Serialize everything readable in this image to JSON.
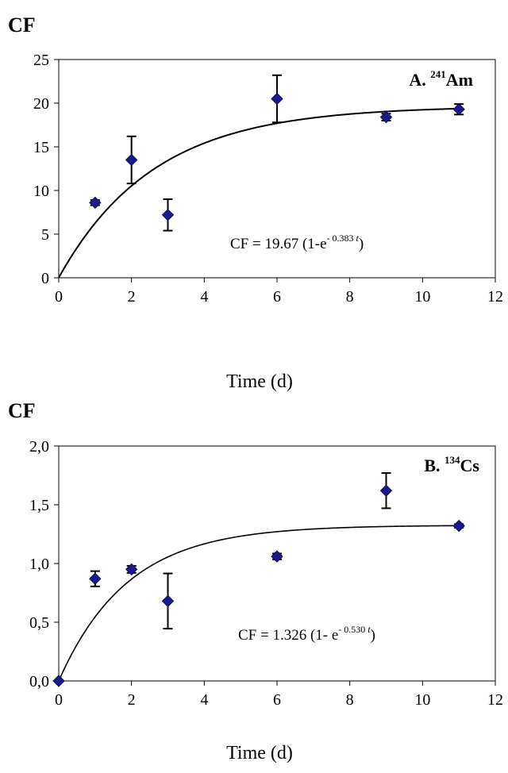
{
  "chart_data": [
    {
      "type": "scatter",
      "ylabel": "CF",
      "xlabel": "Time (d)",
      "panel_label": {
        "prefix": "A. ",
        "isotope_mass": "241",
        "element": "Am"
      },
      "equation": {
        "lhs": "CF = 19.67 (1-e",
        "exponent_prefix": "- 0.383 ",
        "exponent_var": "t",
        "close": ")"
      },
      "xlim": [
        0,
        12
      ],
      "ylim": [
        0,
        25
      ],
      "xticks": [
        0,
        2,
        4,
        6,
        8,
        10,
        12
      ],
      "xtick_labels": [
        "0",
        "2",
        "4",
        "6",
        "8",
        "10",
        "12"
      ],
      "yticks": [
        0,
        5,
        10,
        15,
        20,
        25
      ],
      "ytick_labels": [
        "0",
        "5",
        "10",
        "15",
        "20",
        "25"
      ],
      "grid": false,
      "points": [
        {
          "x": 1,
          "y": 8.6,
          "err": 0.3
        },
        {
          "x": 2,
          "y": 13.5,
          "err": 2.7
        },
        {
          "x": 3,
          "y": 7.2,
          "err": 1.8
        },
        {
          "x": 6,
          "y": 20.5,
          "err": 2.7
        },
        {
          "x": 9,
          "y": 18.4,
          "err": 0.4
        },
        {
          "x": 11,
          "y": 19.3,
          "err": 0.6
        }
      ],
      "fit": {
        "A": 19.67,
        "k": 0.383
      },
      "marker_color": "#1a1a8c"
    },
    {
      "type": "scatter",
      "ylabel": "CF",
      "xlabel": "Time (d)",
      "panel_label": {
        "prefix": "B. ",
        "isotope_mass": "134",
        "element": "Cs"
      },
      "equation": {
        "lhs": "CF = 1.326 (1- e",
        "exponent_prefix": "- 0.530 ",
        "exponent_var": "t",
        "close": ")"
      },
      "xlim": [
        0,
        12
      ],
      "ylim": [
        0,
        2
      ],
      "xticks": [
        0,
        2,
        4,
        6,
        8,
        10,
        12
      ],
      "xtick_labels": [
        "0",
        "2",
        "4",
        "6",
        "8",
        "10",
        "12"
      ],
      "yticks": [
        0,
        0.5,
        1,
        1.5,
        2
      ],
      "ytick_labels": [
        "0,0",
        "0,5",
        "1,0",
        "1,5",
        "2,0"
      ],
      "grid": false,
      "points": [
        {
          "x": 0,
          "y": 0.0,
          "err": 0
        },
        {
          "x": 1,
          "y": 0.87,
          "err": 0.065
        },
        {
          "x": 2,
          "y": 0.95,
          "err": 0.03
        },
        {
          "x": 3,
          "y": 0.68,
          "err": 0.235
        },
        {
          "x": 6,
          "y": 1.06,
          "err": 0.025
        },
        {
          "x": 9,
          "y": 1.62,
          "err": 0.15
        },
        {
          "x": 11,
          "y": 1.32,
          "err": 0.015
        }
      ],
      "fit": {
        "A": 1.326,
        "k": 0.53
      },
      "marker_color": "#1a1a8c"
    }
  ]
}
